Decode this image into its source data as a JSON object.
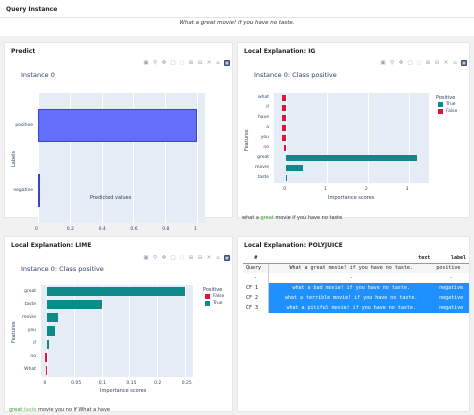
{
  "query": {
    "title": "Query Instance",
    "text": "What a great movie! if you have no taste."
  },
  "modebar_icons": [
    "camera-icon",
    "zoom-icon",
    "pan-icon",
    "box-select-icon",
    "lasso-icon",
    "zoom-in-icon",
    "zoom-out-icon",
    "autoscale-icon",
    "reset-icon",
    "plotly-logo-icon"
  ],
  "predict": {
    "title": "Predict",
    "plot_title": "Instance 0",
    "xlabel": "Predicted values",
    "ylabel": "Labels",
    "chart_data": {
      "type": "bar",
      "orientation": "horizontal",
      "categories": [
        "positive",
        "negative"
      ],
      "values": [
        1.0,
        0.0
      ],
      "xticks": [
        "0",
        "0.2",
        "0.4",
        "0.6",
        "0.8",
        "1"
      ],
      "xlim": [
        0,
        1.05
      ],
      "color": "#636efa"
    }
  },
  "ig": {
    "title": "Local Explanation: IG",
    "plot_title": "Instance 0: Class positive",
    "xlabel": "Importance scores",
    "ylabel": "Features",
    "legend_title": "Positive",
    "legend": [
      {
        "label": "True",
        "color": "#0f8a8a"
      },
      {
        "label": "False",
        "color": "#dc143c"
      }
    ],
    "chart_data": {
      "type": "bar",
      "orientation": "horizontal",
      "categories": [
        "what",
        "if",
        "have",
        "a",
        "you",
        "no",
        "great",
        "movie",
        "taste"
      ],
      "values": [
        -0.1,
        -0.1,
        -0.1,
        -0.1,
        -0.1,
        -0.05,
        3.2,
        0.4,
        0.02
      ],
      "positive": [
        false,
        false,
        false,
        false,
        false,
        false,
        true,
        true,
        true
      ],
      "xticks": [
        "0",
        "1",
        "2",
        "3"
      ],
      "xlim": [
        -0.3,
        3.5
      ]
    },
    "explain_prefix": "what a ",
    "explain_highlight": "great",
    "explain_suffix": " movie if you have no taste"
  },
  "lime": {
    "title": "Local Explanation: LIME",
    "plot_title": "Instance 0: Class positive",
    "xlabel": "Importance scores",
    "ylabel": "Features",
    "legend_title": "Positive",
    "legend": [
      {
        "label": "False",
        "color": "#dc143c"
      },
      {
        "label": "True",
        "color": "#0f8a8a"
      }
    ],
    "chart_data": {
      "type": "bar",
      "orientation": "horizontal",
      "categories": [
        "great",
        "taste",
        "movie",
        "you",
        "if",
        "no",
        "What"
      ],
      "values": [
        0.25,
        0.1,
        0.02,
        0.015,
        0.005,
        -0.003,
        -0.001
      ],
      "positive": [
        true,
        true,
        true,
        true,
        true,
        false,
        false
      ],
      "xticks": [
        "0",
        "0.05",
        "0.1",
        "0.15",
        "0.2",
        "0.25"
      ],
      "xlim": [
        -0.01,
        0.265
      ]
    },
    "explain_highlight": "great",
    "explain_mid": " taste",
    "explain_suffix": " movie you no if What a have"
  },
  "polyjuice": {
    "title": "Local Explanation: POLYJUICE",
    "headers": [
      "#",
      "text",
      "label"
    ],
    "query_row": {
      "name": "Query",
      "text": "What a great movie! if you have no taste.",
      "label": "positive"
    },
    "sep_row": {
      "name": "-",
      "text": "-",
      "label": "-"
    },
    "rows": [
      {
        "name": "CF 1",
        "text": "what a bad movie! if you have no taste.",
        "label": "negative"
      },
      {
        "name": "CF 2",
        "text": "what a terrible movie! if you have no taste.",
        "label": "negative"
      },
      {
        "name": "CF 3",
        "text": "what a pitiful movie! if you have no taste.",
        "label": "negative"
      }
    ]
  }
}
